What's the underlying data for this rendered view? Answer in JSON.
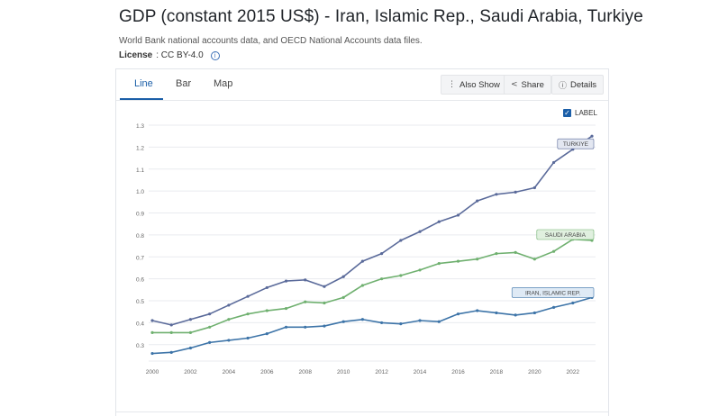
{
  "header": {
    "title": "GDP (constant 2015 US$) - Iran, Islamic Rep., Saudi Arabia, Turkiye",
    "source": "World Bank national accounts data, and OECD National Accounts data files.",
    "license_label": "License",
    "license_value": ": CC BY-4.0"
  },
  "tabs": [
    {
      "label": "Line",
      "active": true
    },
    {
      "label": "Bar",
      "active": false
    },
    {
      "label": "Map",
      "active": false
    }
  ],
  "toolbar": {
    "also_show": "Also Show",
    "share": "Share",
    "details": "Details"
  },
  "label_toggle": {
    "label": "LABEL",
    "checked": true
  },
  "colors": {
    "turkiye": "#5a6a9a",
    "saudi": "#6fb06f",
    "iran": "#3d74a8",
    "accent": "#1b5fa8"
  },
  "chart_data": {
    "type": "line",
    "title": "",
    "xlabel": "",
    "ylabel": "",
    "x": [
      2000,
      2001,
      2002,
      2003,
      2004,
      2005,
      2006,
      2007,
      2008,
      2009,
      2010,
      2011,
      2012,
      2013,
      2014,
      2015,
      2016,
      2017,
      2018,
      2019,
      2020,
      2021,
      2022,
      2023
    ],
    "x_ticks": [
      "2000",
      "2002",
      "2004",
      "2006",
      "2008",
      "2010",
      "2012",
      "2014",
      "2016",
      "2018",
      "2020",
      "2022"
    ],
    "y_ticks": [
      "0.3",
      "0.4",
      "0.5",
      "0.6",
      "0.7",
      "0.8",
      "0.9",
      "1.0",
      "1.1",
      "1.2",
      "1.3"
    ],
    "ylim": [
      0.25,
      1.3
    ],
    "grid": true,
    "series": [
      {
        "name": "TURKIYE",
        "color": "#5a6a9a",
        "label_bg": "#e3e7f1",
        "values": [
          0.41,
          0.39,
          0.415,
          0.44,
          0.48,
          0.52,
          0.56,
          0.59,
          0.595,
          0.565,
          0.61,
          0.68,
          0.715,
          0.775,
          0.815,
          0.86,
          0.89,
          0.955,
          0.985,
          0.995,
          1.015,
          1.13,
          1.19,
          1.25
        ]
      },
      {
        "name": "SAUDI ARABIA",
        "color": "#6fb06f",
        "label_bg": "#e0f0df",
        "values": [
          0.355,
          0.355,
          0.355,
          0.38,
          0.415,
          0.44,
          0.455,
          0.465,
          0.495,
          0.49,
          0.515,
          0.57,
          0.6,
          0.615,
          0.64,
          0.67,
          0.68,
          0.69,
          0.715,
          0.72,
          0.69,
          0.725,
          0.78,
          0.775
        ]
      },
      {
        "name": "IRAN, ISLAMIC REP.",
        "color": "#3d74a8",
        "label_bg": "#dfeaf5",
        "values": [
          0.26,
          0.265,
          0.285,
          0.31,
          0.32,
          0.33,
          0.35,
          0.38,
          0.38,
          0.385,
          0.405,
          0.415,
          0.4,
          0.395,
          0.41,
          0.405,
          0.44,
          0.455,
          0.445,
          0.435,
          0.445,
          0.47,
          0.49,
          0.515
        ]
      }
    ]
  }
}
